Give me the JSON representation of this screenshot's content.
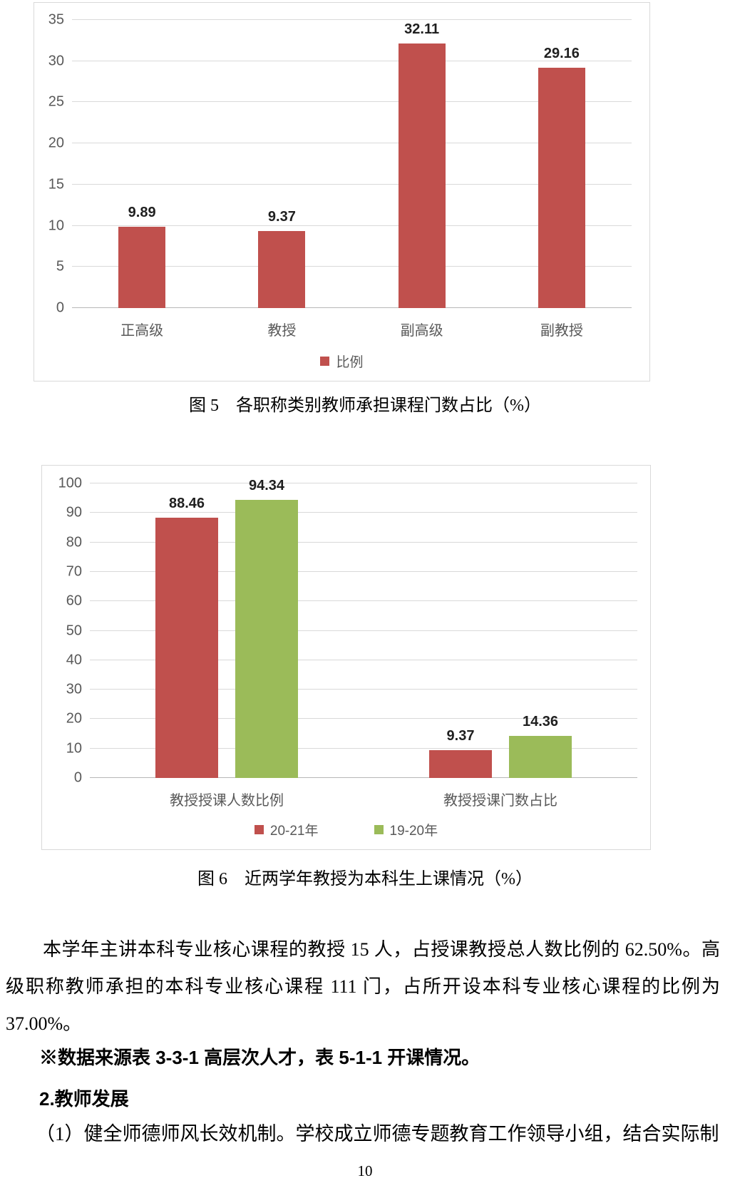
{
  "page": {
    "number": "10"
  },
  "figures": [
    {
      "caption": "图 5　各职称类别教师承担课程门数占比（%）"
    },
    {
      "caption": "图 6　近两学年教授为本科生上课情况（%）"
    }
  ],
  "chart_data": [
    {
      "type": "bar",
      "title": "各职称类别教师承担课程门数占比（%）",
      "categories": [
        "正高级",
        "教授",
        "副高级",
        "副教授"
      ],
      "series": [
        {
          "name": "比例",
          "color": "#c0504d",
          "values": [
            9.89,
            9.37,
            32.11,
            29.16
          ]
        }
      ],
      "xlabel": "",
      "ylabel": "",
      "ylim": [
        0,
        35
      ],
      "yticks": [
        0,
        5,
        10,
        15,
        20,
        25,
        30,
        35
      ],
      "grid": true,
      "data_labels": true,
      "legend_position": "bottom"
    },
    {
      "type": "bar",
      "title": "近两学年教授为本科生上课情况（%）",
      "categories": [
        "教授授课人数比例",
        "教授授课门数占比"
      ],
      "series": [
        {
          "name": "20-21年",
          "color": "#c0504d",
          "values": [
            88.46,
            9.37
          ]
        },
        {
          "name": "19-20年",
          "color": "#9bbb59",
          "values": [
            94.34,
            14.36
          ]
        }
      ],
      "xlabel": "",
      "ylabel": "",
      "ylim": [
        0,
        100
      ],
      "yticks": [
        0,
        10,
        20,
        30,
        40,
        50,
        60,
        70,
        80,
        90,
        100
      ],
      "grid": true,
      "data_labels": true,
      "legend_position": "bottom"
    }
  ],
  "body": {
    "paragraph1": "本学年主讲本科专业核心课程的教授 15 人，占授课教授总人数比例的 62.50%。高级职称教师承担的本科专业核心课程 111 门，占所开设本科专业核心课程的比例为 37.00%。",
    "note": "※数据来源表 3-3-1 高层次人才，表 5-1-1 开课情况。",
    "heading": "2.教师发展",
    "paragraph2": "（1）健全师德师风长效机制。学校成立师德专题教育工作领导小组，结合实际制"
  },
  "colors": {
    "series_red": "#c0504d",
    "series_green": "#9bbb59",
    "grid": "#d9d9d9",
    "axis_text": "#595959",
    "chart_border": "#d9d9d9"
  }
}
